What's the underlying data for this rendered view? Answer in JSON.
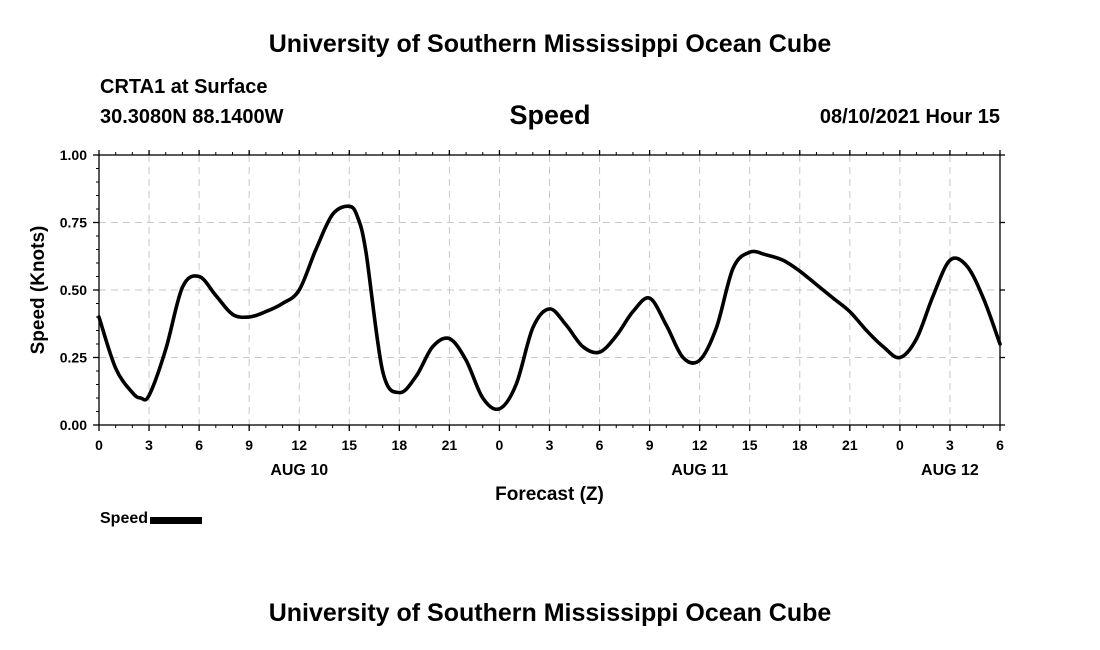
{
  "header": {
    "title": "University of Southern Mississippi Ocean Cube",
    "station": "CRTA1 at Surface",
    "coordinates": "30.3080N  88.1400W",
    "variable": "Speed",
    "datetime": "08/10/2021 Hour 15"
  },
  "footer": {
    "title": "University of Southern Mississippi Ocean Cube"
  },
  "legend": {
    "label": "Speed",
    "color": "#000000"
  },
  "chart_data": {
    "type": "line",
    "title": "Speed",
    "xlabel": "Forecast (Z)",
    "ylabel": "Speed (Knots)",
    "ylim": [
      0,
      1
    ],
    "xlim": [
      0,
      54
    ],
    "grid": true,
    "y_ticks": [
      0,
      0.25,
      0.5,
      0.75,
      1.0
    ],
    "y_tick_labels": [
      "0.00",
      "0.25",
      "0.50",
      "0.75",
      "1.00"
    ],
    "x_ticks": [
      0,
      3,
      6,
      9,
      12,
      15,
      18,
      21,
      24,
      27,
      30,
      33,
      36,
      39,
      42,
      45,
      48,
      51,
      54
    ],
    "x_tick_labels": [
      "0",
      "3",
      "6",
      "9",
      "12",
      "15",
      "18",
      "21",
      "0",
      "3",
      "6",
      "9",
      "12",
      "15",
      "18",
      "21",
      "0",
      "3",
      "6"
    ],
    "day_labels": [
      {
        "label": "AUG 10",
        "x": 12
      },
      {
        "label": "AUG 11",
        "x": 36
      },
      {
        "label": "AUG 12",
        "x": 51
      }
    ],
    "series": [
      {
        "name": "Speed",
        "x": [
          0,
          1,
          2,
          2.5,
          3,
          4,
          5,
          6,
          7,
          8,
          9,
          10,
          11,
          12,
          13,
          14,
          15,
          15.5,
          16,
          17,
          18,
          19,
          20,
          21,
          22,
          23,
          24,
          25,
          26,
          27,
          28,
          29,
          30,
          31,
          32,
          33,
          34,
          35,
          36,
          37,
          38,
          39,
          40,
          41,
          42,
          43,
          44,
          45,
          46,
          47,
          48,
          49,
          50,
          51,
          52,
          53,
          54
        ],
        "values": [
          0.4,
          0.21,
          0.12,
          0.1,
          0.11,
          0.28,
          0.51,
          0.55,
          0.48,
          0.41,
          0.4,
          0.42,
          0.45,
          0.5,
          0.65,
          0.78,
          0.81,
          0.77,
          0.64,
          0.2,
          0.12,
          0.18,
          0.29,
          0.32,
          0.24,
          0.1,
          0.06,
          0.15,
          0.36,
          0.43,
          0.37,
          0.29,
          0.27,
          0.33,
          0.42,
          0.47,
          0.37,
          0.25,
          0.24,
          0.36,
          0.58,
          0.64,
          0.63,
          0.61,
          0.57,
          0.52,
          0.47,
          0.42,
          0.35,
          0.29,
          0.25,
          0.32,
          0.48,
          0.61,
          0.59,
          0.47,
          0.3
        ]
      }
    ]
  }
}
